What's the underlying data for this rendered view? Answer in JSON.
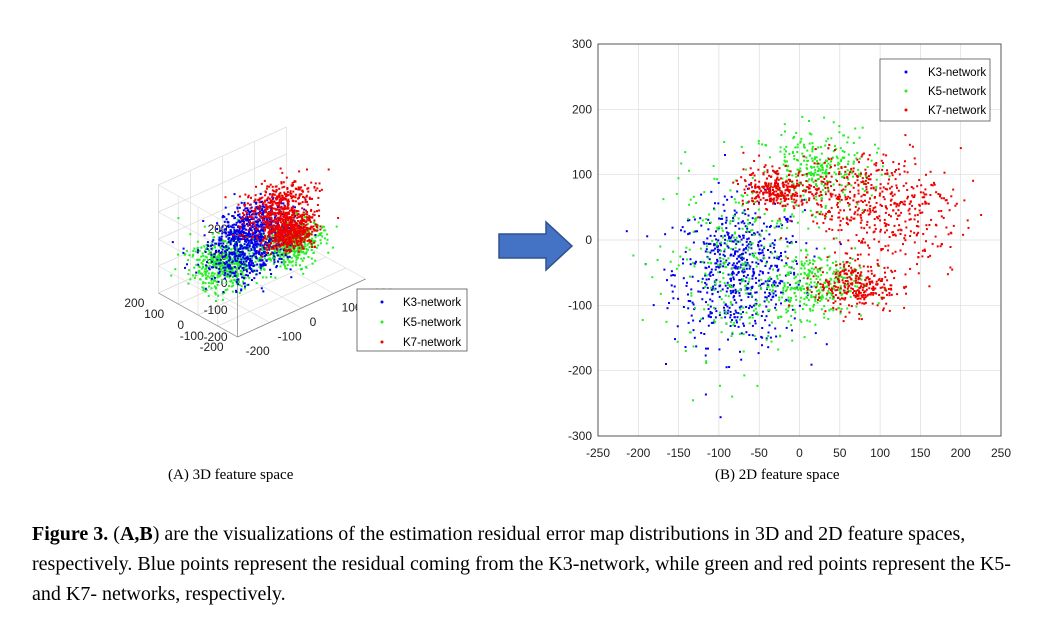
{
  "chart_data": [
    {
      "type": "scatter",
      "projection": "3d",
      "panel_label": "(A) 3D feature space",
      "zlim": [
        -200,
        200
      ],
      "xlim": [
        -200,
        200
      ],
      "ylim": [
        -200,
        200
      ],
      "z_ticks": [
        "200",
        "100",
        "0",
        "-100",
        "-200"
      ],
      "x_ticks": [
        "200",
        "100",
        "0",
        "-100",
        "-200"
      ],
      "y_ticks": [
        "200",
        "100",
        "0",
        "-100",
        "-200"
      ],
      "grid": true,
      "legend_position": "bottom-right",
      "series": [
        {
          "name": "K3-network",
          "color": "#0000ee",
          "clusters": [
            {
              "x": -60,
              "y": -60,
              "z": 80,
              "spread": 45
            },
            {
              "x": -30,
              "y": 30,
              "z": -70,
              "spread": 55
            }
          ]
        },
        {
          "name": "K5-network",
          "color": "#22ee22",
          "clusters": [
            {
              "x": -90,
              "y": 40,
              "z": -80,
              "spread": 50
            },
            {
              "x": 60,
              "y": -40,
              "z": -60,
              "spread": 40
            }
          ]
        },
        {
          "name": "K7-network",
          "color": "#ee0000",
          "clusters": [
            {
              "x": 20,
              "y": -60,
              "z": 100,
              "spread": 50
            },
            {
              "x": 80,
              "y": -20,
              "z": -40,
              "spread": 30
            }
          ]
        }
      ]
    },
    {
      "type": "scatter",
      "panel_label": "(B) 2D feature space",
      "xlim": [
        -250,
        250
      ],
      "ylim": [
        -300,
        300
      ],
      "x_ticks": [
        "-250",
        "-200",
        "-150",
        "-100",
        "-50",
        "0",
        "50",
        "100",
        "150",
        "200",
        "250"
      ],
      "y_ticks": [
        "300",
        "200",
        "100",
        "0",
        "-100",
        "-200",
        "-300"
      ],
      "grid": true,
      "legend_position": "top-right",
      "series": [
        {
          "name": "K3-network",
          "color": "#0000ee",
          "clusters": [
            {
              "x": -75,
              "y": -50,
              "sx": 40,
              "sy": 55
            }
          ]
        },
        {
          "name": "K5-network",
          "color": "#22ee22",
          "clusters": [
            {
              "x": -75,
              "y": -40,
              "sx": 45,
              "sy": 70
            },
            {
              "x": 20,
              "y": -70,
              "sx": 30,
              "sy": 25
            },
            {
              "x": 20,
              "y": 110,
              "sx": 35,
              "sy": 30
            }
          ]
        },
        {
          "name": "K7-network",
          "color": "#ee0000",
          "clusters": [
            {
              "x": 60,
              "y": 65,
              "sx": 45,
              "sy": 35
            },
            {
              "x": -30,
              "y": 80,
              "sx": 20,
              "sy": 15
            },
            {
              "x": 70,
              "y": -70,
              "sx": 25,
              "sy": 20
            },
            {
              "x": 120,
              "y": 40,
              "sx": 40,
              "sy": 50
            }
          ]
        }
      ]
    }
  ],
  "caption": {
    "label": "Figure 3.",
    "prefix": "(",
    "panels": "A,B",
    "text": ") are the visualizations of the estimation residual error map distributions in 3D and 2D feature spaces, respectively. Blue points represent the residual coming from the K3-network, while green and red points represent the K5- and K7- networks, respectively."
  },
  "colors": {
    "arrow_fill": "#4472c4",
    "arrow_stroke": "#2f528f",
    "grid": "#dcdcdc",
    "axis": "#333333"
  }
}
